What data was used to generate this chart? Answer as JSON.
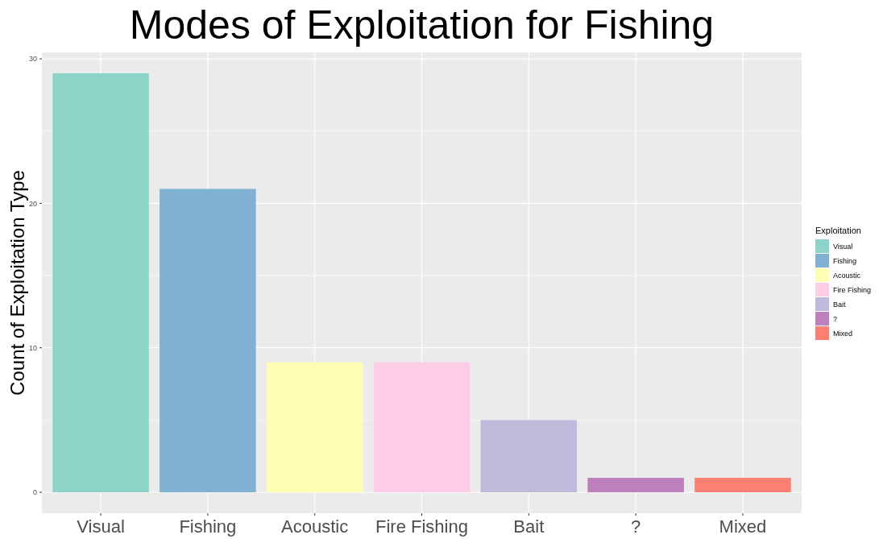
{
  "chart_data": {
    "type": "bar",
    "title": "Modes of Exploitation for Fishing",
    "ylabel": "Count of Exploitation Type",
    "legend_title": "Exploitation",
    "categories": [
      "Visual",
      "Fishing",
      "Acoustic",
      "Fire Fishing",
      "Bait",
      "?",
      "Mixed"
    ],
    "stacked": true,
    "series": [
      {
        "name": "Visual",
        "color": "#8dd3c7",
        "values": [
          29,
          null,
          null,
          null,
          null,
          null,
          null
        ]
      },
      {
        "name": "Fishing",
        "color": "#80b1d3",
        "values": [
          null,
          21,
          null,
          null,
          null,
          null,
          null
        ]
      },
      {
        "name": "Acoustic",
        "color": "#ffffb3",
        "values": [
          null,
          null,
          9,
          null,
          null,
          null,
          null
        ]
      },
      {
        "name": "Fire Fishing",
        "color": "#fccde5",
        "values": [
          null,
          null,
          null,
          9,
          null,
          null,
          null
        ]
      },
      {
        "name": "Bait",
        "color": "#bebada",
        "values": [
          null,
          null,
          null,
          null,
          5,
          null,
          null
        ]
      },
      {
        "name": "?",
        "color": "#bc80bd",
        "values": [
          null,
          null,
          null,
          null,
          null,
          1,
          null
        ]
      },
      {
        "name": "Mixed",
        "color": "#fb8072",
        "values": [
          null,
          null,
          null,
          null,
          null,
          null,
          1
        ]
      }
    ],
    "ylim": [
      -1.45,
      30.45
    ],
    "yticks": [
      0,
      10,
      20,
      30
    ],
    "grid": true,
    "legend": "right"
  }
}
